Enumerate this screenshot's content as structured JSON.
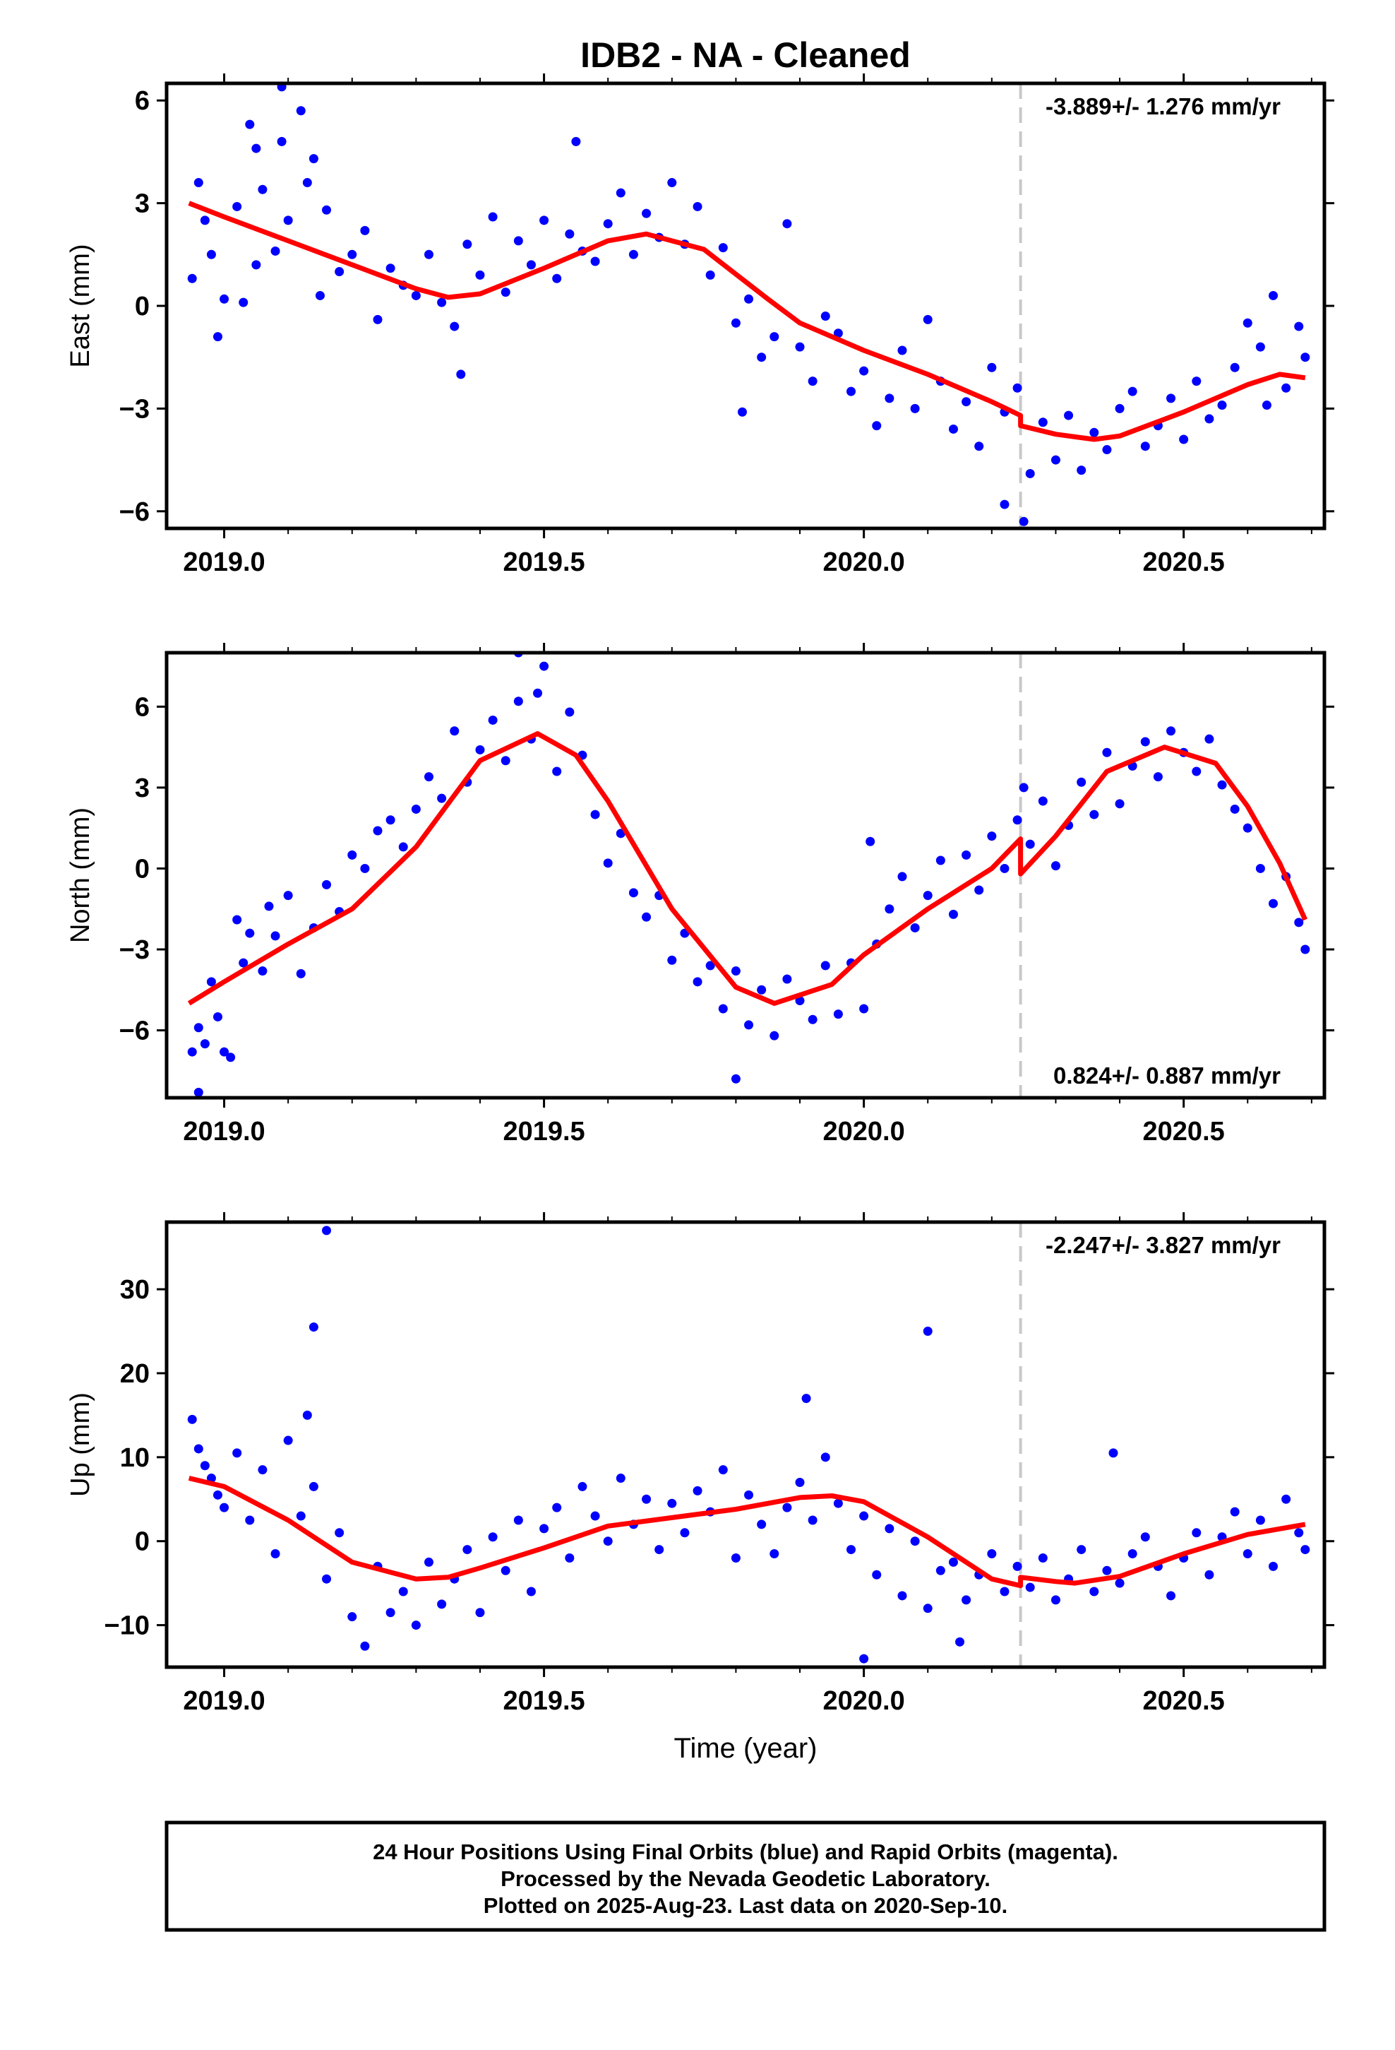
{
  "title": "IDB2  - NA - Cleaned",
  "xlabel": "Time (year)",
  "footer": {
    "line1": "24 Hour Positions Using Final Orbits (blue) and Rapid Orbits (magenta).",
    "line2": "Processed by the Nevada Geodetic Laboratory.",
    "line3": "Plotted on 2025-Aug-23. Last data on 2020-Sep-10."
  },
  "colors": {
    "points": "#0000ff",
    "fit": "#ff0000",
    "break": "#c8c8c8",
    "frame": "#000000"
  },
  "chart_data": [
    {
      "type": "scatter",
      "ylabel": "East (mm)",
      "rate": "-3.889+/- 1.276 mm/yr",
      "xlim": [
        2018.91,
        2020.72
      ],
      "ylim": [
        -6.5,
        6.5
      ],
      "xticks": [
        2019.0,
        2019.5,
        2020.0,
        2020.5
      ],
      "xtick_labels": [
        "2019.0",
        "2019.5",
        "2020.0",
        "2020.5"
      ],
      "yticks": [
        -6,
        -3,
        0,
        3,
        6
      ],
      "ytick_labels": [
        "−6",
        "−3",
        "0",
        "3",
        "6"
      ],
      "break_x": 2020.245,
      "fit": {
        "x": [
          2018.945,
          2019.0,
          2019.1,
          2019.2,
          2019.3,
          2019.35,
          2019.4,
          2019.5,
          2019.6,
          2019.66,
          2019.75,
          2019.85,
          2019.9,
          2020.0,
          2020.1,
          2020.2,
          2020.245,
          2020.245,
          2020.3,
          2020.36,
          2020.4,
          2020.5,
          2020.6,
          2020.65,
          2020.69
        ],
        "y": [
          3.0,
          2.6,
          1.9,
          1.2,
          0.5,
          0.25,
          0.35,
          1.1,
          1.9,
          2.1,
          1.65,
          0.2,
          -0.5,
          -1.3,
          -2.0,
          -2.8,
          -3.2,
          -3.5,
          -3.75,
          -3.9,
          -3.8,
          -3.1,
          -2.3,
          -2.0,
          -2.1
        ]
      },
      "series": [
        {
          "x": [
            2018.95,
            2018.96,
            2018.97,
            2018.98,
            2018.99,
            2019.0,
            2019.02,
            2019.03,
            2019.04,
            2019.05,
            2019.06,
            2019.08,
            2019.09,
            2019.1,
            2019.12,
            2019.13,
            2019.15,
            2019.16,
            2019.18,
            2019.2,
            2019.22,
            2019.24,
            2019.26,
            2019.28,
            2019.3,
            2019.32,
            2019.34,
            2019.36,
            2019.38,
            2019.4,
            2019.42,
            2019.44,
            2019.46,
            2019.48,
            2019.5,
            2019.52,
            2019.54,
            2019.56,
            2019.58,
            2019.6,
            2019.62,
            2019.64,
            2019.66,
            2019.68,
            2019.7,
            2019.72,
            2019.74,
            2019.76,
            2019.78,
            2019.8,
            2019.82,
            2019.84,
            2019.86,
            2019.88,
            2019.9,
            2019.92,
            2019.94,
            2019.96,
            2019.98,
            2020.0,
            2020.02,
            2020.04,
            2020.06,
            2020.08,
            2020.1,
            2020.12,
            2020.14,
            2020.16,
            2020.18,
            2020.2,
            2020.22,
            2020.24,
            2020.26,
            2020.28,
            2020.3,
            2020.32,
            2020.34,
            2020.36,
            2020.38,
            2020.4,
            2020.42,
            2020.44,
            2020.46,
            2020.48,
            2020.5,
            2020.52,
            2020.54,
            2020.56,
            2020.58,
            2020.6,
            2020.62,
            2020.64,
            2020.66,
            2020.68,
            2020.69,
            2019.09,
            2019.05,
            2019.14,
            2019.37,
            2019.55,
            2019.81,
            2020.22,
            2020.25,
            2020.63
          ],
          "y": [
            0.8,
            3.6,
            2.5,
            1.5,
            -0.9,
            0.2,
            2.9,
            0.1,
            5.3,
            1.2,
            3.4,
            1.6,
            6.4,
            2.5,
            5.7,
            3.6,
            0.3,
            2.8,
            1.0,
            1.5,
            2.2,
            -0.4,
            1.1,
            0.6,
            0.3,
            1.5,
            0.1,
            -0.6,
            1.8,
            0.9,
            2.6,
            0.4,
            1.9,
            1.2,
            2.5,
            0.8,
            2.1,
            1.6,
            1.3,
            2.4,
            3.3,
            1.5,
            2.7,
            2.0,
            3.6,
            1.8,
            2.9,
            0.9,
            1.7,
            -0.5,
            0.2,
            -1.5,
            -0.9,
            2.4,
            -1.2,
            -2.2,
            -0.3,
            -0.8,
            -2.5,
            -1.9,
            -3.5,
            -2.7,
            -1.3,
            -3.0,
            -0.4,
            -2.2,
            -3.6,
            -2.8,
            -4.1,
            -1.8,
            -3.1,
            -2.4,
            -4.9,
            -3.4,
            -4.5,
            -3.2,
            -4.8,
            -3.7,
            -4.2,
            -3.0,
            -2.5,
            -4.1,
            -3.5,
            -2.7,
            -3.9,
            -2.2,
            -3.3,
            -2.9,
            -1.8,
            -0.5,
            -1.2,
            0.3,
            -2.4,
            -0.6,
            -1.5,
            4.8,
            4.6,
            4.3,
            -2.0,
            4.8,
            -3.1,
            -5.8,
            -6.3,
            -2.9
          ]
        }
      ]
    },
    {
      "type": "scatter",
      "ylabel": "North (mm)",
      "rate": "0.824+/- 0.887 mm/yr",
      "xlim": [
        2018.91,
        2020.72
      ],
      "ylim": [
        -8.5,
        8.0
      ],
      "xticks": [
        2019.0,
        2019.5,
        2020.0,
        2020.5
      ],
      "xtick_labels": [
        "2019.0",
        "2019.5",
        "2020.0",
        "2020.5"
      ],
      "yticks": [
        -6,
        -3,
        0,
        3,
        6
      ],
      "ytick_labels": [
        "−6",
        "−3",
        "0",
        "3",
        "6"
      ],
      "break_x": 2020.245,
      "fit": {
        "x": [
          2018.945,
          2019.0,
          2019.1,
          2019.2,
          2019.3,
          2019.4,
          2019.49,
          2019.55,
          2019.6,
          2019.7,
          2019.8,
          2019.86,
          2019.95,
          2020.0,
          2020.1,
          2020.2,
          2020.245,
          2020.245,
          2020.3,
          2020.38,
          2020.47,
          2020.55,
          2020.6,
          2020.65,
          2020.69
        ],
        "y": [
          -5.0,
          -4.2,
          -2.8,
          -1.5,
          0.8,
          4.0,
          5.0,
          4.2,
          2.5,
          -1.5,
          -4.4,
          -5.0,
          -4.3,
          -3.2,
          -1.5,
          0.0,
          1.1,
          -0.2,
          1.2,
          3.6,
          4.5,
          3.9,
          2.3,
          0.2,
          -1.9
        ]
      },
      "series": [
        {
          "x": [
            2018.95,
            2018.96,
            2018.97,
            2018.98,
            2018.99,
            2019.0,
            2019.02,
            2019.03,
            2019.04,
            2019.06,
            2019.07,
            2019.08,
            2019.1,
            2019.12,
            2019.14,
            2019.16,
            2019.18,
            2019.2,
            2019.22,
            2019.24,
            2019.26,
            2019.28,
            2019.3,
            2019.32,
            2019.34,
            2019.36,
            2019.38,
            2019.4,
            2019.42,
            2019.44,
            2019.46,
            2019.48,
            2019.5,
            2019.52,
            2019.54,
            2019.56,
            2019.58,
            2019.6,
            2019.62,
            2019.64,
            2019.66,
            2019.68,
            2019.7,
            2019.72,
            2019.74,
            2019.76,
            2019.78,
            2019.8,
            2019.82,
            2019.84,
            2019.86,
            2019.88,
            2019.9,
            2019.92,
            2019.94,
            2019.96,
            2019.98,
            2020.0,
            2020.02,
            2020.04,
            2020.06,
            2020.08,
            2020.1,
            2020.12,
            2020.14,
            2020.16,
            2020.18,
            2020.2,
            2020.22,
            2020.24,
            2020.26,
            2020.28,
            2020.3,
            2020.32,
            2020.34,
            2020.36,
            2020.38,
            2020.4,
            2020.42,
            2020.44,
            2020.46,
            2020.48,
            2020.5,
            2020.52,
            2020.54,
            2020.56,
            2020.58,
            2020.6,
            2020.62,
            2020.64,
            2020.66,
            2020.68,
            2020.69,
            2018.96,
            2019.01,
            2019.46,
            2019.49,
            2019.8,
            2020.01,
            2020.25
          ],
          "y": [
            -6.8,
            -5.9,
            -6.5,
            -4.2,
            -5.5,
            -6.8,
            -1.9,
            -3.5,
            -2.4,
            -3.8,
            -1.4,
            -2.5,
            -1.0,
            -3.9,
            -2.2,
            -0.6,
            -1.6,
            0.5,
            0.0,
            1.4,
            1.8,
            0.8,
            2.2,
            3.4,
            2.6,
            5.1,
            3.2,
            4.4,
            5.5,
            4.0,
            6.2,
            4.8,
            7.5,
            3.6,
            5.8,
            4.2,
            2.0,
            0.2,
            1.3,
            -0.9,
            -1.8,
            -1.0,
            -3.4,
            -2.4,
            -4.2,
            -3.6,
            -5.2,
            -3.8,
            -5.8,
            -4.5,
            -6.2,
            -4.1,
            -4.9,
            -5.6,
            -3.6,
            -5.4,
            -3.5,
            -5.2,
            -2.8,
            -1.5,
            -0.3,
            -2.2,
            -1.0,
            0.3,
            -1.7,
            0.5,
            -0.8,
            1.2,
            0.0,
            1.8,
            0.9,
            2.5,
            0.1,
            1.6,
            3.2,
            2.0,
            4.3,
            2.4,
            3.8,
            4.7,
            3.4,
            5.1,
            4.3,
            3.6,
            4.8,
            3.1,
            2.2,
            1.5,
            0.0,
            -1.3,
            -0.3,
            -2.0,
            -3.0,
            -8.3,
            -7.0,
            8.0,
            6.5,
            -7.8,
            1.0,
            3.0
          ]
        }
      ]
    },
    {
      "type": "scatter",
      "ylabel": "Up (mm)",
      "rate": "-2.247+/- 3.827 mm/yr",
      "xlim": [
        2018.91,
        2020.72
      ],
      "ylim": [
        -15,
        38
      ],
      "xticks": [
        2019.0,
        2019.5,
        2020.0,
        2020.5
      ],
      "xtick_labels": [
        "2019.0",
        "2019.5",
        "2020.0",
        "2020.5"
      ],
      "yticks": [
        -10,
        0,
        10,
        20,
        30
      ],
      "ytick_labels": [
        "−10",
        "0",
        "10",
        "20",
        "30"
      ],
      "break_x": 2020.245,
      "fit": {
        "x": [
          2018.945,
          2019.0,
          2019.1,
          2019.2,
          2019.3,
          2019.35,
          2019.4,
          2019.5,
          2019.6,
          2019.7,
          2019.8,
          2019.9,
          2019.95,
          2020.0,
          2020.1,
          2020.2,
          2020.245,
          2020.245,
          2020.3,
          2020.33,
          2020.4,
          2020.5,
          2020.6,
          2020.69
        ],
        "y": [
          7.5,
          6.5,
          2.5,
          -2.5,
          -4.5,
          -4.3,
          -3.2,
          -0.8,
          1.8,
          2.8,
          3.8,
          5.2,
          5.4,
          4.7,
          0.5,
          -4.5,
          -5.3,
          -4.3,
          -4.8,
          -5.0,
          -4.2,
          -1.5,
          0.8,
          2.0
        ]
      },
      "series": [
        {
          "x": [
            2018.95,
            2018.96,
            2018.97,
            2018.98,
            2018.99,
            2019.0,
            2019.02,
            2019.04,
            2019.06,
            2019.08,
            2019.1,
            2019.12,
            2019.14,
            2019.16,
            2019.18,
            2019.2,
            2019.22,
            2019.24,
            2019.26,
            2019.28,
            2019.3,
            2019.32,
            2019.34,
            2019.36,
            2019.38,
            2019.4,
            2019.42,
            2019.44,
            2019.46,
            2019.48,
            2019.5,
            2019.52,
            2019.54,
            2019.56,
            2019.58,
            2019.6,
            2019.62,
            2019.64,
            2019.66,
            2019.68,
            2019.7,
            2019.72,
            2019.74,
            2019.76,
            2019.78,
            2019.8,
            2019.82,
            2019.84,
            2019.86,
            2019.88,
            2019.9,
            2019.92,
            2019.94,
            2019.96,
            2019.98,
            2020.0,
            2020.02,
            2020.04,
            2020.06,
            2020.08,
            2020.1,
            2020.12,
            2020.14,
            2020.16,
            2020.18,
            2020.2,
            2020.22,
            2020.24,
            2020.26,
            2020.28,
            2020.3,
            2020.32,
            2020.34,
            2020.36,
            2020.38,
            2020.4,
            2020.42,
            2020.44,
            2020.46,
            2020.48,
            2020.5,
            2020.52,
            2020.54,
            2020.56,
            2020.58,
            2020.6,
            2020.62,
            2020.64,
            2020.66,
            2020.68,
            2020.69,
            2019.16,
            2019.14,
            2019.13,
            2019.91,
            2020.1,
            2020.0,
            2020.39,
            2020.15
          ],
          "y": [
            14.5,
            11.0,
            9.0,
            7.5,
            5.5,
            4.0,
            10.5,
            2.5,
            8.5,
            -1.5,
            12.0,
            3.0,
            6.5,
            -4.5,
            1.0,
            -9.0,
            -12.5,
            -3.0,
            -8.5,
            -6.0,
            -10.0,
            -2.5,
            -7.5,
            -4.5,
            -1.0,
            -8.5,
            0.5,
            -3.5,
            2.5,
            -6.0,
            1.5,
            4.0,
            -2.0,
            6.5,
            3.0,
            0.0,
            7.5,
            2.0,
            5.0,
            -1.0,
            4.5,
            1.0,
            6.0,
            3.5,
            8.5,
            -2.0,
            5.5,
            2.0,
            -1.5,
            4.0,
            7.0,
            2.5,
            10.0,
            4.5,
            -1.0,
            3.0,
            -4.0,
            1.5,
            -6.5,
            0.0,
            -8.0,
            -3.5,
            -2.5,
            -7.0,
            -4.0,
            -1.5,
            -6.0,
            -3.0,
            -5.5,
            -2.0,
            -7.0,
            -4.5,
            -1.0,
            -6.0,
            -3.5,
            -5.0,
            -1.5,
            0.5,
            -3.0,
            -6.5,
            -2.0,
            1.0,
            -4.0,
            0.5,
            3.5,
            -1.5,
            2.5,
            -3.0,
            5.0,
            1.0,
            -1.0,
            37.0,
            25.5,
            15.0,
            17.0,
            25.0,
            -14.0,
            10.5,
            -12.0
          ]
        }
      ]
    }
  ]
}
